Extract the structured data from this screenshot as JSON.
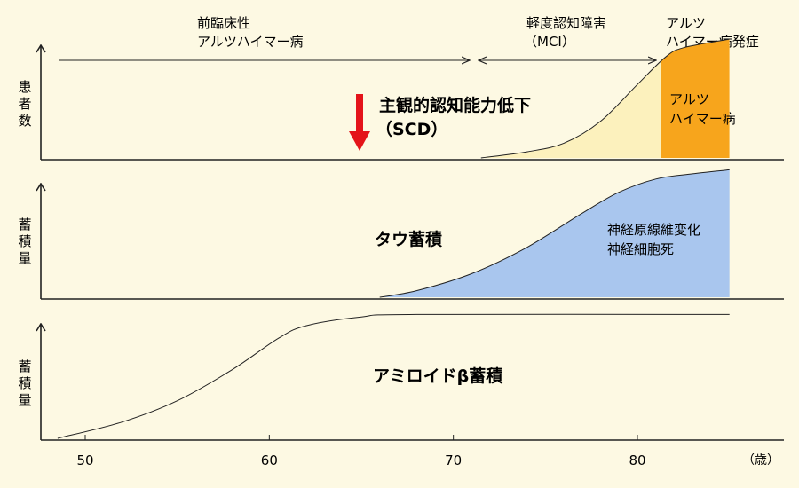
{
  "stages": {
    "preclinical": [
      "前臨床性",
      "アルツハイマー病"
    ],
    "mci": [
      "軽度認知障害",
      "（MCI）"
    ],
    "ad_onset": [
      "アルツ",
      "ハイマー病発症"
    ]
  },
  "panels": {
    "top": {
      "ylabel": [
        "患",
        "者",
        "数"
      ],
      "scd": [
        "主観的認知能力低下",
        "（SCD）"
      ],
      "ad_area": [
        "アルツ",
        "ハイマー病"
      ]
    },
    "middle": {
      "ylabel": [
        "蓄",
        "積",
        "量"
      ],
      "title": "タウ蓄積",
      "area": [
        "神経原線維変化",
        "神経細胞死"
      ]
    },
    "bottom": {
      "ylabel": [
        "蓄",
        "積",
        "量"
      ],
      "title": "アミロイドβ蓄積"
    }
  },
  "x_axis": {
    "ticks": [
      "50",
      "60",
      "70",
      "80"
    ],
    "unit": "（歳）"
  },
  "colors": {
    "mci_fill": "#fcf1bd",
    "ad_fill": "#f7a51c",
    "tau_fill": "#a9c6ee",
    "arrow_red": "#e4141a",
    "background": "#fdf9e3"
  },
  "chart_data": {
    "type": "area",
    "x_range": [
      48,
      85
    ],
    "x_ticks": [
      50,
      60,
      70,
      80
    ],
    "series": [
      {
        "points": [
          [
            71.5,
            0
          ],
          [
            74,
            0.05
          ],
          [
            76,
            0.12
          ],
          [
            78,
            0.3
          ],
          [
            80,
            0.6
          ],
          [
            81.5,
            0.82
          ],
          [
            82.5,
            0.9
          ],
          [
            85,
            0.97
          ]
        ]
      },
      {
        "points": [
          [
            66,
            0
          ],
          [
            68,
            0.05
          ],
          [
            71,
            0.18
          ],
          [
            74,
            0.38
          ],
          [
            77,
            0.64
          ],
          [
            79,
            0.8
          ],
          [
            81,
            0.9
          ],
          [
            83,
            0.94
          ],
          [
            85,
            0.97
          ]
        ]
      },
      {
        "points": [
          [
            48.5,
            0
          ],
          [
            52,
            0.13
          ],
          [
            55,
            0.3
          ],
          [
            58,
            0.55
          ],
          [
            60.5,
            0.8
          ],
          [
            62,
            0.9
          ],
          [
            65,
            0.97
          ],
          [
            68,
            0.99
          ],
          [
            85,
            0.99
          ]
        ]
      }
    ],
    "ad_onset_x": 81.3
  }
}
